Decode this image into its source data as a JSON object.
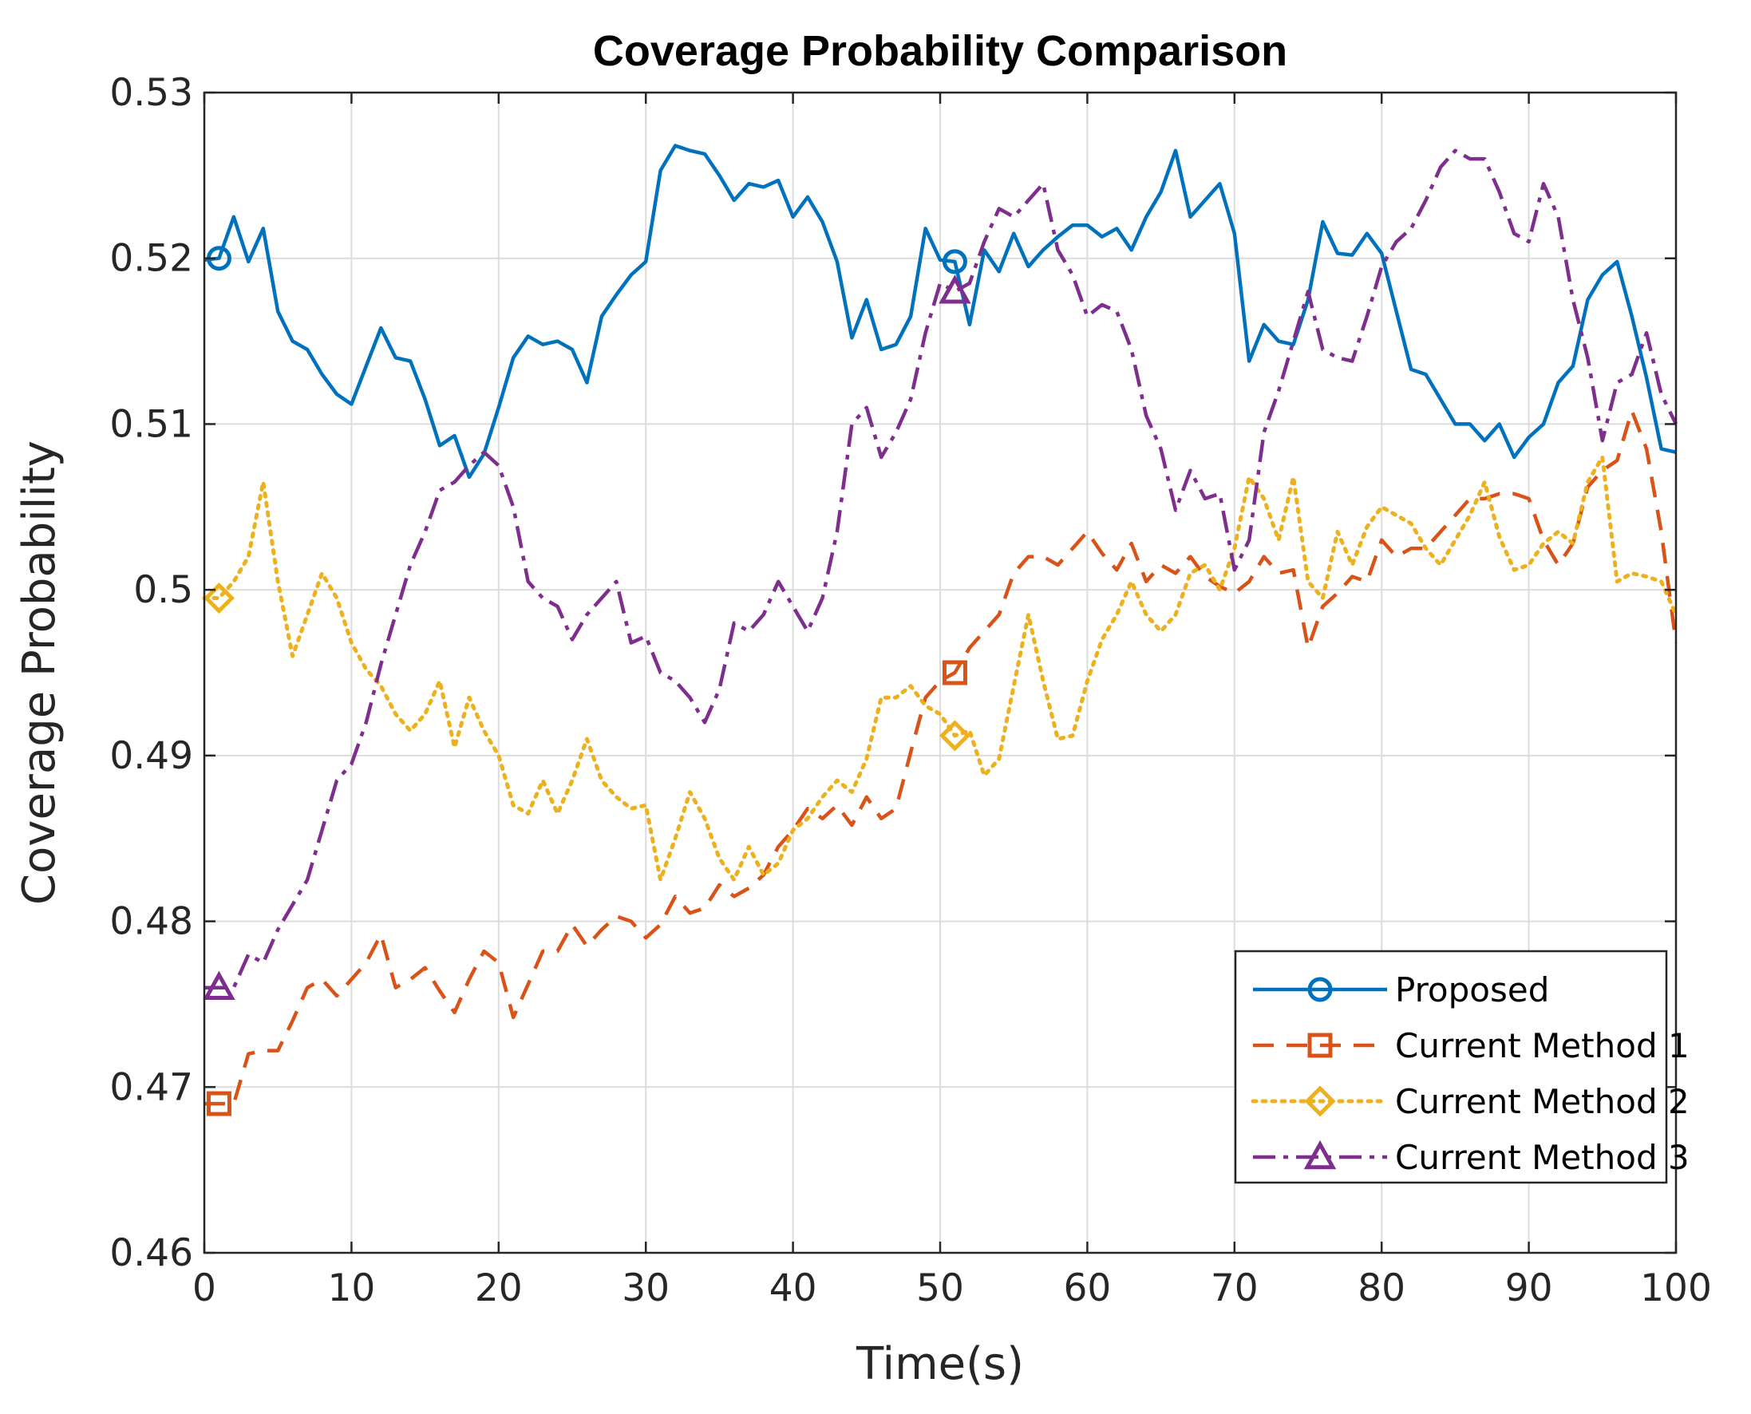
{
  "chart_data": {
    "type": "line",
    "title": "Coverage Probability Comparison",
    "xlabel": "Time(s)",
    "ylabel": "Coverage Probability",
    "xlim": [
      0,
      100
    ],
    "ylim": [
      0.46,
      0.53
    ],
    "xticks": [
      0,
      10,
      20,
      30,
      40,
      50,
      60,
      70,
      80,
      90,
      100
    ],
    "xtick_labels": [
      "0",
      "10",
      "20",
      "30",
      "40",
      "50",
      "60",
      "70",
      "80",
      "90",
      "100"
    ],
    "yticks": [
      0.46,
      0.47,
      0.48,
      0.49,
      0.5,
      0.51,
      0.52,
      0.53
    ],
    "ytick_labels": [
      "0.46",
      "0.47",
      "0.48",
      "0.49",
      "0.5",
      "0.51",
      "0.52",
      "0.53"
    ],
    "grid": true,
    "legend_position": "bottom-right",
    "series": [
      {
        "name": "Proposed",
        "color": "#0072BD",
        "line_style": "solid",
        "marker": "circle",
        "marker_x": [
          1,
          51
        ],
        "x": [
          0,
          1,
          2,
          3,
          4,
          5,
          6,
          7,
          8,
          9,
          10,
          11,
          12,
          13,
          14,
          15,
          16,
          17,
          18,
          19,
          20,
          21,
          22,
          23,
          24,
          25,
          26,
          27,
          28,
          29,
          30,
          31,
          32,
          33,
          34,
          35,
          36,
          37,
          38,
          39,
          40,
          41,
          42,
          43,
          44,
          45,
          46,
          47,
          48,
          49,
          50,
          51,
          52,
          53,
          54,
          55,
          56,
          57,
          58,
          59,
          60,
          61,
          62,
          63,
          64,
          65,
          66,
          67,
          68,
          69,
          70,
          71,
          72,
          73,
          74,
          75,
          76,
          77,
          78,
          79,
          80,
          81,
          82,
          83,
          84,
          85,
          86,
          87,
          88,
          89,
          90,
          91,
          92,
          93,
          94,
          95,
          96,
          97,
          98,
          99,
          100
        ],
        "y": [
          0.5199,
          0.52,
          0.5225,
          0.5198,
          0.5218,
          0.5168,
          0.515,
          0.5145,
          0.513,
          0.5118,
          0.5112,
          0.5135,
          0.5158,
          0.514,
          0.5138,
          0.5115,
          0.5087,
          0.5093,
          0.5068,
          0.5082,
          0.511,
          0.514,
          0.5153,
          0.5148,
          0.515,
          0.5145,
          0.5125,
          0.5165,
          0.5178,
          0.519,
          0.5198,
          0.5253,
          0.5268,
          0.5265,
          0.5263,
          0.525,
          0.5235,
          0.5245,
          0.5243,
          0.5247,
          0.5225,
          0.5237,
          0.5222,
          0.5198,
          0.5152,
          0.5175,
          0.5145,
          0.5148,
          0.5165,
          0.5218,
          0.5199,
          0.5198,
          0.516,
          0.5205,
          0.5192,
          0.5215,
          0.5195,
          0.5205,
          0.5213,
          0.522,
          0.522,
          0.5213,
          0.5218,
          0.5205,
          0.5225,
          0.524,
          0.5265,
          0.5225,
          0.5235,
          0.5245,
          0.5215,
          0.5138,
          0.516,
          0.515,
          0.5148,
          0.5175,
          0.5222,
          0.5203,
          0.5202,
          0.5215,
          0.5203,
          0.5168,
          0.5133,
          0.513,
          0.5115,
          0.51,
          0.51,
          0.509,
          0.51,
          0.508,
          0.5092,
          0.51,
          0.5125,
          0.5135,
          0.5175,
          0.519,
          0.5198,
          0.5165,
          0.5128,
          0.5085,
          0.5083
        ]
      },
      {
        "name": "Current Method 1",
        "color": "#D95319",
        "line_style": "dashed",
        "marker": "square",
        "marker_x": [
          1,
          51
        ],
        "x": [
          0,
          1,
          2,
          3,
          4,
          5,
          6,
          7,
          8,
          9,
          10,
          11,
          12,
          13,
          14,
          15,
          16,
          17,
          18,
          19,
          20,
          21,
          22,
          23,
          24,
          25,
          26,
          27,
          28,
          29,
          30,
          31,
          32,
          33,
          34,
          35,
          36,
          37,
          38,
          39,
          40,
          41,
          42,
          43,
          44,
          45,
          46,
          47,
          48,
          49,
          50,
          51,
          52,
          53,
          54,
          55,
          56,
          57,
          58,
          59,
          60,
          61,
          62,
          63,
          64,
          65,
          66,
          67,
          68,
          69,
          70,
          71,
          72,
          73,
          74,
          75,
          76,
          77,
          78,
          79,
          80,
          81,
          82,
          83,
          84,
          85,
          86,
          87,
          88,
          89,
          90,
          91,
          92,
          93,
          94,
          95,
          96,
          97,
          98,
          99,
          100
        ],
        "y": [
          0.469,
          0.469,
          0.469,
          0.472,
          0.4722,
          0.4722,
          0.474,
          0.476,
          0.4765,
          0.4755,
          0.4765,
          0.4775,
          0.4792,
          0.476,
          0.4765,
          0.4772,
          0.4758,
          0.4745,
          0.4765,
          0.4782,
          0.4775,
          0.4742,
          0.4762,
          0.4782,
          0.4782,
          0.4798,
          0.4785,
          0.4795,
          0.4803,
          0.48,
          0.479,
          0.4798,
          0.4815,
          0.4805,
          0.4808,
          0.4822,
          0.4815,
          0.482,
          0.4828,
          0.4845,
          0.4855,
          0.4868,
          0.4862,
          0.487,
          0.4858,
          0.4875,
          0.4862,
          0.4868,
          0.4902,
          0.4935,
          0.4945,
          0.495,
          0.4965,
          0.4975,
          0.4985,
          0.501,
          0.502,
          0.502,
          0.5015,
          0.5025,
          0.5035,
          0.5022,
          0.5012,
          0.5028,
          0.5005,
          0.5015,
          0.501,
          0.502,
          0.5008,
          0.5002,
          0.4998,
          0.5005,
          0.502,
          0.501,
          0.5012,
          0.4965,
          0.499,
          0.4998,
          0.5008,
          0.5005,
          0.503,
          0.502,
          0.5025,
          0.5025,
          0.5035,
          0.5045,
          0.5055,
          0.5055,
          0.5058,
          0.5058,
          0.5055,
          0.503,
          0.5015,
          0.5028,
          0.5062,
          0.5072,
          0.5078,
          0.5108,
          0.5085,
          0.5035,
          0.4968
        ]
      },
      {
        "name": "Current Method 2",
        "color": "#EDB120",
        "line_style": "dotted",
        "marker": "diamond",
        "marker_x": [
          1,
          51
        ],
        "x": [
          0,
          1,
          2,
          3,
          4,
          5,
          6,
          7,
          8,
          9,
          10,
          11,
          12,
          13,
          14,
          15,
          16,
          17,
          18,
          19,
          20,
          21,
          22,
          23,
          24,
          25,
          26,
          27,
          28,
          29,
          30,
          31,
          32,
          33,
          34,
          35,
          36,
          37,
          38,
          39,
          40,
          41,
          42,
          43,
          44,
          45,
          46,
          47,
          48,
          49,
          50,
          51,
          52,
          53,
          54,
          55,
          56,
          57,
          58,
          59,
          60,
          61,
          62,
          63,
          64,
          65,
          66,
          67,
          68,
          69,
          70,
          71,
          72,
          73,
          74,
          75,
          76,
          77,
          78,
          79,
          80,
          81,
          82,
          83,
          84,
          85,
          86,
          87,
          88,
          89,
          90,
          91,
          92,
          93,
          94,
          95,
          96,
          97,
          98,
          99,
          100
        ],
        "y": [
          0.4995,
          0.4995,
          0.5005,
          0.502,
          0.5065,
          0.5005,
          0.496,
          0.4985,
          0.501,
          0.4995,
          0.4968,
          0.4952,
          0.4942,
          0.4925,
          0.4915,
          0.4925,
          0.4945,
          0.4905,
          0.4935,
          0.4915,
          0.49,
          0.487,
          0.4865,
          0.4885,
          0.4865,
          0.4885,
          0.491,
          0.4885,
          0.4875,
          0.4868,
          0.487,
          0.4825,
          0.485,
          0.4878,
          0.4862,
          0.4838,
          0.4825,
          0.4845,
          0.4828,
          0.4835,
          0.4855,
          0.4862,
          0.4875,
          0.4885,
          0.4878,
          0.4898,
          0.4935,
          0.4935,
          0.4942,
          0.493,
          0.4925,
          0.4912,
          0.4915,
          0.4888,
          0.4898,
          0.4942,
          0.4985,
          0.4945,
          0.491,
          0.4912,
          0.4945,
          0.497,
          0.4985,
          0.5005,
          0.4985,
          0.4975,
          0.4985,
          0.501,
          0.5015,
          0.5,
          0.5025,
          0.5068,
          0.5055,
          0.503,
          0.5068,
          0.5005,
          0.4995,
          0.5035,
          0.5015,
          0.5038,
          0.505,
          0.5045,
          0.504,
          0.5025,
          0.5015,
          0.503,
          0.5045,
          0.5065,
          0.5032,
          0.5012,
          0.5015,
          0.5028,
          0.5035,
          0.5028,
          0.5065,
          0.508,
          0.5005,
          0.501,
          0.5008,
          0.5005,
          0.4985
        ]
      },
      {
        "name": "Current Method 3",
        "color": "#7E2F8E",
        "line_style": "dashdot",
        "marker": "triangle",
        "marker_x": [
          1,
          51
        ],
        "x": [
          0,
          1,
          2,
          3,
          4,
          5,
          6,
          7,
          8,
          9,
          10,
          11,
          12,
          13,
          14,
          15,
          16,
          17,
          18,
          19,
          20,
          21,
          22,
          23,
          24,
          25,
          26,
          27,
          28,
          29,
          30,
          31,
          32,
          33,
          34,
          35,
          36,
          37,
          38,
          39,
          40,
          41,
          42,
          43,
          44,
          45,
          46,
          47,
          48,
          49,
          50,
          51,
          52,
          53,
          54,
          55,
          56,
          57,
          58,
          59,
          60,
          61,
          62,
          63,
          64,
          65,
          66,
          67,
          68,
          69,
          70,
          71,
          72,
          73,
          74,
          75,
          76,
          77,
          78,
          79,
          80,
          81,
          82,
          83,
          84,
          85,
          86,
          87,
          88,
          89,
          90,
          91,
          92,
          93,
          94,
          95,
          96,
          97,
          98,
          99,
          100
        ],
        "y": [
          0.476,
          0.476,
          0.476,
          0.478,
          0.4775,
          0.4795,
          0.481,
          0.4825,
          0.4855,
          0.4885,
          0.4895,
          0.492,
          0.4955,
          0.4985,
          0.5015,
          0.5035,
          0.506,
          0.5065,
          0.5075,
          0.5083,
          0.5075,
          0.505,
          0.5005,
          0.4995,
          0.499,
          0.497,
          0.4985,
          0.4995,
          0.5005,
          0.4968,
          0.4972,
          0.495,
          0.4945,
          0.4935,
          0.492,
          0.494,
          0.498,
          0.4975,
          0.4985,
          0.5005,
          0.499,
          0.4975,
          0.4995,
          0.5035,
          0.51,
          0.511,
          0.508,
          0.5095,
          0.5115,
          0.5155,
          0.5185,
          0.518,
          0.5185,
          0.521,
          0.523,
          0.5225,
          0.5235,
          0.5245,
          0.5205,
          0.519,
          0.5165,
          0.5172,
          0.5168,
          0.5145,
          0.5105,
          0.5085,
          0.5048,
          0.5072,
          0.5055,
          0.5058,
          0.5012,
          0.503,
          0.5095,
          0.512,
          0.515,
          0.518,
          0.5145,
          0.514,
          0.5138,
          0.5165,
          0.5195,
          0.521,
          0.5218,
          0.5235,
          0.5255,
          0.5265,
          0.526,
          0.526,
          0.524,
          0.5215,
          0.521,
          0.5245,
          0.5225,
          0.5175,
          0.514,
          0.509,
          0.5125,
          0.513,
          0.5155,
          0.5118,
          0.51
        ]
      }
    ]
  }
}
